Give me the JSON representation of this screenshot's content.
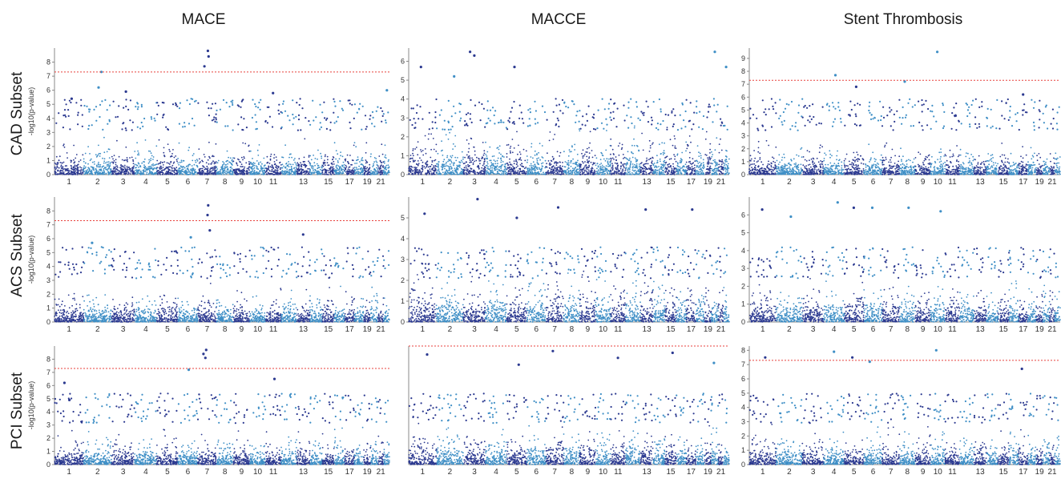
{
  "column_titles": [
    "MACE",
    "MACCE",
    "Stent Thrombosis"
  ],
  "row_titles": [
    "CAD Subset",
    "ACS Subset",
    "PCI Subset"
  ],
  "colors": {
    "odd_chromosome": "#2b3990",
    "even_chromosome": "#3f8fc6",
    "threshold": "#e8413c"
  },
  "chart_data": [
    {
      "type": "scatter",
      "row": "CAD Subset",
      "column": "MACE",
      "ylabel": "-log10(p-value)",
      "ylim": [
        0,
        9
      ],
      "yticks": [
        0,
        1,
        2,
        3,
        4,
        5,
        6,
        7,
        8
      ],
      "chromosomes": [
        1,
        2,
        3,
        4,
        5,
        6,
        7,
        8,
        9,
        10,
        11,
        12,
        13,
        14,
        15,
        16,
        17,
        18,
        19,
        20,
        21,
        22
      ],
      "x_tick_labels": [
        "1",
        "2",
        "3",
        "4",
        "5",
        "6",
        "7",
        "8",
        "9",
        "10",
        "11",
        "13",
        "15",
        "17",
        "19",
        "21"
      ],
      "threshold": 7.3,
      "top_hits": [
        {
          "chr": 1,
          "y": 5.4
        },
        {
          "chr": 2,
          "y": 7.3
        },
        {
          "chr": 2,
          "y": 6.2
        },
        {
          "chr": 3,
          "y": 5.9
        },
        {
          "chr": 7,
          "y": 8.8
        },
        {
          "chr": 7,
          "y": 8.4
        },
        {
          "chr": 7,
          "y": 7.7
        },
        {
          "chr": 11,
          "y": 5.8
        },
        {
          "chr": 22,
          "y": 6.0
        }
      ]
    },
    {
      "type": "scatter",
      "row": "CAD Subset",
      "column": "MACCE",
      "ylabel": "",
      "ylim": [
        0,
        6.7
      ],
      "yticks": [
        0,
        1,
        2,
        3,
        4,
        5,
        6
      ],
      "chromosomes": [
        1,
        2,
        3,
        4,
        5,
        6,
        7,
        8,
        9,
        10,
        11,
        12,
        13,
        14,
        15,
        16,
        17,
        18,
        19,
        20,
        21,
        22
      ],
      "x_tick_labels": [
        "1",
        "2",
        "3",
        "4",
        "5",
        "6",
        "7",
        "8",
        "9",
        "10",
        "11",
        "13",
        "15",
        "17",
        "19",
        "21"
      ],
      "threshold": null,
      "top_hits": [
        {
          "chr": 1,
          "y": 5.7
        },
        {
          "chr": 2,
          "y": 5.2
        },
        {
          "chr": 3,
          "y": 6.5
        },
        {
          "chr": 3,
          "y": 6.3
        },
        {
          "chr": 5,
          "y": 5.7
        },
        {
          "chr": 20,
          "y": 6.5
        },
        {
          "chr": 22,
          "y": 5.7
        }
      ]
    },
    {
      "type": "scatter",
      "row": "CAD Subset",
      "column": "Stent Thrombosis",
      "ylabel": "",
      "ylim": [
        0,
        9.8
      ],
      "yticks": [
        0,
        1,
        2,
        3,
        4,
        5,
        6,
        7,
        8,
        9
      ],
      "chromosomes": [
        1,
        2,
        3,
        4,
        5,
        6,
        7,
        8,
        9,
        10,
        11,
        12,
        13,
        14,
        15,
        16,
        17,
        18,
        19,
        20,
        21,
        22
      ],
      "x_tick_labels": [
        "1",
        "2",
        "3",
        "4",
        "5",
        "6",
        "7",
        "8",
        "9",
        "10",
        "11",
        "13",
        "15",
        "17",
        "19",
        "21"
      ],
      "threshold": 7.3,
      "top_hits": [
        {
          "chr": 4,
          "y": 7.7
        },
        {
          "chr": 8,
          "y": 7.2
        },
        {
          "chr": 10,
          "y": 9.5
        },
        {
          "chr": 5,
          "y": 6.8
        },
        {
          "chr": 17,
          "y": 6.2
        }
      ]
    },
    {
      "type": "scatter",
      "row": "ACS Subset",
      "column": "MACE",
      "ylabel": "-log10(p-value)",
      "ylim": [
        0,
        9
      ],
      "yticks": [
        0,
        1,
        2,
        3,
        4,
        5,
        6,
        7,
        8
      ],
      "chromosomes": [
        1,
        2,
        3,
        4,
        5,
        6,
        7,
        8,
        9,
        10,
        11,
        12,
        13,
        14,
        15,
        16,
        17,
        18,
        19,
        20,
        21,
        22
      ],
      "x_tick_labels": [
        "1",
        "2",
        "3",
        "4",
        "5",
        "6",
        "7",
        "8",
        "9",
        "10",
        "11",
        "13",
        "15",
        "17",
        "19",
        "21"
      ],
      "threshold": 7.3,
      "top_hits": [
        {
          "chr": 7,
          "y": 8.4
        },
        {
          "chr": 7,
          "y": 7.7
        },
        {
          "chr": 7,
          "y": 6.6
        },
        {
          "chr": 6,
          "y": 6.1
        },
        {
          "chr": 13,
          "y": 6.3
        },
        {
          "chr": 2,
          "y": 5.7
        }
      ]
    },
    {
      "type": "scatter",
      "row": "ACS Subset",
      "column": "MACCE",
      "ylabel": "",
      "ylim": [
        0,
        6
      ],
      "yticks": [
        0,
        1,
        2,
        3,
        4,
        5
      ],
      "chromosomes": [
        1,
        2,
        3,
        4,
        5,
        6,
        7,
        8,
        9,
        10,
        11,
        12,
        13,
        14,
        15,
        16,
        17,
        18,
        19,
        20,
        21,
        22
      ],
      "x_tick_labels": [
        "1",
        "2",
        "3",
        "4",
        "5",
        "6",
        "7",
        "8",
        "9",
        "10",
        "11",
        "13",
        "15",
        "17",
        "19",
        "21"
      ],
      "threshold": null,
      "top_hits": [
        {
          "chr": 3,
          "y": 5.9
        },
        {
          "chr": 1,
          "y": 5.2
        },
        {
          "chr": 7,
          "y": 5.5
        },
        {
          "chr": 13,
          "y": 5.4
        },
        {
          "chr": 17,
          "y": 5.4
        },
        {
          "chr": 5,
          "y": 5.0
        }
      ]
    },
    {
      "type": "scatter",
      "row": "ACS Subset",
      "column": "Stent Thrombosis",
      "ylabel": "",
      "ylim": [
        0,
        7
      ],
      "yticks": [
        0,
        1,
        2,
        3,
        4,
        5,
        6
      ],
      "chromosomes": [
        1,
        2,
        3,
        4,
        5,
        6,
        7,
        8,
        9,
        10,
        11,
        12,
        13,
        14,
        15,
        16,
        17,
        18,
        19,
        20,
        21,
        22
      ],
      "x_tick_labels": [
        "1",
        "2",
        "3",
        "4",
        "5",
        "6",
        "7",
        "8",
        "9",
        "10",
        "11",
        "13",
        "15",
        "17",
        "19",
        "21"
      ],
      "threshold": null,
      "top_hits": [
        {
          "chr": 1,
          "y": 6.3
        },
        {
          "chr": 2,
          "y": 5.9
        },
        {
          "chr": 4,
          "y": 6.7
        },
        {
          "chr": 5,
          "y": 6.4
        },
        {
          "chr": 6,
          "y": 6.4
        },
        {
          "chr": 10,
          "y": 6.2
        },
        {
          "chr": 8,
          "y": 6.4
        }
      ]
    },
    {
      "type": "scatter",
      "row": "PCI Subset",
      "column": "MACE",
      "ylabel": "-log10(p-value)",
      "ylim": [
        0,
        9
      ],
      "yticks": [
        0,
        1,
        2,
        3,
        4,
        5,
        6,
        7,
        8
      ],
      "chromosomes": [
        1,
        2,
        3,
        4,
        5,
        6,
        7,
        8,
        9,
        10,
        11,
        12,
        13,
        14,
        15,
        16,
        17,
        18,
        19,
        20,
        21,
        22
      ],
      "x_tick_labels": [
        "1",
        "2",
        "3",
        "4",
        "5",
        "6",
        "7",
        "8",
        "9",
        "10",
        "11",
        "13",
        "15",
        "17",
        "19",
        "21"
      ],
      "threshold": 7.3,
      "top_hits": [
        {
          "chr": 7,
          "y": 8.7
        },
        {
          "chr": 7,
          "y": 8.4
        },
        {
          "chr": 7,
          "y": 8.1
        },
        {
          "chr": 6,
          "y": 7.2
        },
        {
          "chr": 1,
          "y": 6.2
        },
        {
          "chr": 11,
          "y": 6.5
        },
        {
          "chr": 1,
          "y": 4.9
        }
      ]
    },
    {
      "type": "scatter",
      "row": "PCI Subset",
      "column": "MACCE",
      "ylabel": "",
      "ylim": [
        0,
        7
      ],
      "yticks": [],
      "chromosomes": [
        1,
        2,
        3,
        4,
        5,
        6,
        7,
        8,
        9,
        10,
        11,
        12,
        13,
        14,
        15,
        16,
        17,
        18,
        19,
        20,
        21,
        22
      ],
      "x_tick_labels": [
        "1",
        "2",
        "3",
        "4",
        "5",
        "6",
        "7",
        "8",
        "9",
        "10",
        "11",
        "13",
        "15",
        "17",
        "19",
        "21"
      ],
      "threshold": 7.0,
      "top_hits": [
        {
          "chr": 1,
          "y": 6.5
        },
        {
          "chr": 7,
          "y": 6.7
        },
        {
          "chr": 15,
          "y": 6.6
        },
        {
          "chr": 11,
          "y": 6.3
        },
        {
          "chr": 5,
          "y": 5.9
        },
        {
          "chr": 20,
          "y": 6.0
        }
      ]
    },
    {
      "type": "scatter",
      "row": "PCI Subset",
      "column": "Stent Thrombosis",
      "ylabel": "",
      "ylim": [
        0,
        8.3
      ],
      "yticks": [
        0,
        1,
        2,
        3,
        4,
        5,
        6,
        7,
        8
      ],
      "chromosomes": [
        1,
        2,
        3,
        4,
        5,
        6,
        7,
        8,
        9,
        10,
        11,
        12,
        13,
        14,
        15,
        16,
        17,
        18,
        19,
        20,
        21,
        22
      ],
      "x_tick_labels": [
        "1",
        "2",
        "3",
        "4",
        "5",
        "6",
        "7",
        "8",
        "9",
        "10",
        "11",
        "13",
        "15",
        "17",
        "19",
        "21"
      ],
      "threshold": 7.3,
      "top_hits": [
        {
          "chr": 1,
          "y": 7.5
        },
        {
          "chr": 4,
          "y": 7.9
        },
        {
          "chr": 5,
          "y": 7.5
        },
        {
          "chr": 10,
          "y": 8.0
        },
        {
          "chr": 6,
          "y": 7.2
        },
        {
          "chr": 17,
          "y": 6.7
        }
      ]
    }
  ]
}
